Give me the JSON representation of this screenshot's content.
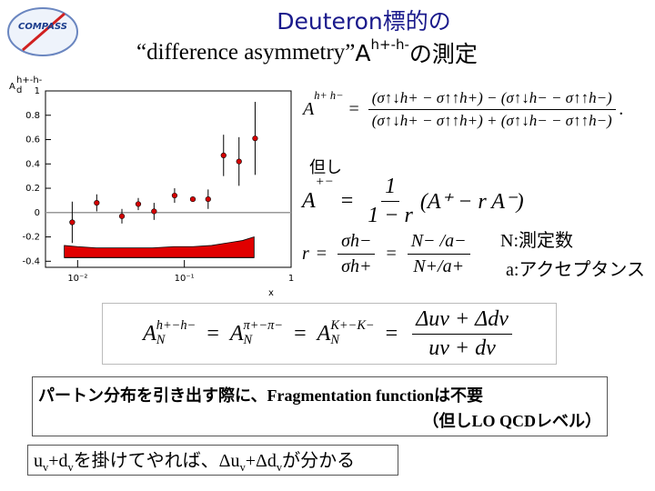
{
  "logo": "COMPASS",
  "title": {
    "line1": "Deuteron標的の",
    "line2_quoted": "“difference asymmetry”",
    "line2_symbol": "A",
    "line2_sup": "h+-h-",
    "line2_tail": "の測定"
  },
  "chart_data": {
    "type": "scatter",
    "ylabel": "A",
    "ylabel_sub": "d",
    "ylabel_sup": "h+-h-",
    "xlabel": "x",
    "x": [
      0.0089,
      0.0151,
      0.026,
      0.037,
      0.052,
      0.081,
      0.12,
      0.167,
      0.233,
      0.325,
      0.46
    ],
    "values": [
      -0.08,
      0.08,
      -0.03,
      0.07,
      0.01,
      0.14,
      0.11,
      0.11,
      0.47,
      0.42,
      0.61
    ],
    "errors": [
      0.17,
      0.07,
      0.06,
      0.05,
      0.07,
      0.06,
      0.02,
      0.08,
      0.17,
      0.2,
      0.3
    ],
    "color": "#d40000",
    "band": {
      "x": [
        0.0075,
        0.01,
        0.015,
        0.02,
        0.03,
        0.05,
        0.08,
        0.12,
        0.18,
        0.25,
        0.35,
        0.45
      ],
      "values": [
        -0.27,
        -0.28,
        -0.29,
        -0.29,
        -0.29,
        -0.29,
        -0.28,
        -0.28,
        -0.27,
        -0.25,
        -0.23,
        -0.2
      ],
      "base": -0.37,
      "color": "#e00000"
    },
    "xlim": [
      0.005,
      1
    ],
    "ylim": [
      -0.45,
      1
    ],
    "log_x": true,
    "zero_line": true,
    "xticks": [
      {
        "value": 0.01,
        "label": "10⁻²"
      },
      {
        "value": 0.1,
        "label": "10⁻¹"
      },
      1
    ],
    "yticks": [
      -0.4,
      -0.2,
      0,
      0.2,
      0.4,
      0.6,
      0.8,
      1
    ]
  },
  "eq1": {
    "lhs": "A",
    "lhs_sup": "h+ h−",
    "op": "=",
    "num": "(σ↑↓h+ − σ↑↑h+) − (σ↑↓h− − σ↑↑h−)",
    "den": "(σ↑↓h+ − σ↑↑h+) + (σ↑↓h− − σ↑↑h−)",
    "end": "."
  },
  "note_tadashi": "但し",
  "eq2": {
    "lhs": "A",
    "lhs_sup": "+−",
    "op": "=",
    "num": "1",
    "den": "1 − r",
    "rhs": "(A⁺ − r A⁻)"
  },
  "eq3": {
    "lhs": "r",
    "op1": "=",
    "num1": "σh−",
    "den1": "σh+",
    "op2": "=",
    "num2": "N− /a−",
    "den2": "N+/a+"
  },
  "legend_n": "N:測定数",
  "legend_a": "a:アクセプタンス",
  "eq4": {
    "terms": [
      {
        "base": "A",
        "sub": "N",
        "sup": "h+−h−"
      },
      {
        "base": "A",
        "sub": "N",
        "sup": "π+−π−"
      },
      {
        "base": "A",
        "sub": "N",
        "sup": "K+−K−"
      }
    ],
    "op": "=",
    "num": "Δuv + Δdv",
    "den": "uv + dv"
  },
  "box_note": {
    "line1_a": "パートン分布を引き出す際に、",
    "line1_b": "Fragmentation function",
    "line1_c": "は不要",
    "line2_a": "（但し",
    "line2_b": "LO QCD",
    "line2_c": "レベル）"
  },
  "bottom_note": [
    "u",
    "v",
    "+d",
    "v",
    "を掛けてやれば、Δu",
    "v",
    "+Δd",
    "v",
    "が分かる"
  ]
}
